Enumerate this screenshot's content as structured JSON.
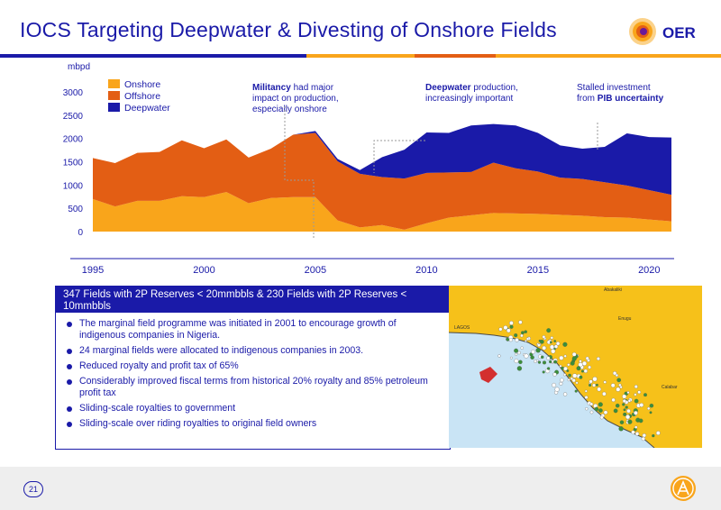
{
  "title": "IOCS Targeting Deepwater & Divesting of Onshore Fields",
  "logo": {
    "text": "OER"
  },
  "colors": {
    "onshore": "#F9A51B",
    "offshore": "#E35E14",
    "deepwater": "#1A1AA8",
    "title": "#1A1AA8",
    "map_land": "#F6C11A",
    "map_sea": "#C9E4F5"
  },
  "chart_data": {
    "type": "area",
    "stacked": true,
    "ylabel": "mbpd",
    "x": [
      1995,
      1996,
      1997,
      1998,
      1999,
      2000,
      2001,
      2002,
      2003,
      2004,
      2005,
      2006,
      2007,
      2008,
      2009,
      2010,
      2011,
      2012,
      2013,
      2014,
      2015,
      2016,
      2017,
      2018,
      2019,
      2020,
      2021
    ],
    "series": [
      {
        "name": "Onshore",
        "values": [
          700,
          540,
          660,
          660,
          760,
          740,
          850,
          610,
          720,
          740,
          740,
          240,
          90,
          140,
          40,
          180,
          300,
          350,
          400,
          390,
          380,
          360,
          340,
          310,
          300,
          260,
          220
        ]
      },
      {
        "name": "Offshore",
        "values": [
          880,
          930,
          1030,
          1050,
          1200,
          1050,
          1130,
          980,
          1060,
          1340,
          1380,
          1270,
          1150,
          1030,
          1100,
          1080,
          970,
          930,
          1080,
          970,
          910,
          800,
          790,
          750,
          690,
          630,
          570
        ]
      },
      {
        "name": "Deepwater",
        "values": [
          0,
          0,
          0,
          0,
          0,
          0,
          0,
          0,
          0,
          0,
          40,
          50,
          80,
          430,
          620,
          870,
          850,
          1000,
          830,
          920,
          830,
          690,
          650,
          760,
          1120,
          1140,
          1230
        ]
      }
    ],
    "yticks": [
      0,
      500,
      1000,
      1500,
      2000,
      2500,
      3000
    ],
    "xticks": [
      1995,
      2000,
      2005,
      2010,
      2015,
      2020
    ],
    "ylim": [
      0,
      3100
    ],
    "legend": "top-left",
    "grid": false,
    "annotations": [
      {
        "id": "militancy",
        "year": 2005,
        "lines": [
          [
            "Militancy",
            " had major"
          ],
          [
            "impact on production,"
          ],
          [
            "especially onshore"
          ]
        ]
      },
      {
        "id": "deepwater",
        "year": 2010,
        "lines": [
          [
            "Deepwater",
            " production,"
          ],
          [
            "increasingly important"
          ]
        ]
      },
      {
        "id": "pib",
        "year": 2017,
        "lines": [
          [
            "Stalled investment"
          ],
          [
            "from ",
            "PIB uncertainty"
          ]
        ]
      }
    ]
  },
  "panel": {
    "header": "347 Fields with 2P Reserves < 20mmbbls & 230 Fields with 2P Reserves < 10mmbbls",
    "bullets": [
      "The marginal field programme was initiated in 2001 to encourage growth of indigenous companies in Nigeria.",
      "24 marginal fields were allocated to indigenous companies in 2003.",
      "Reduced royalty and profit tax of 65%",
      "Considerably improved fiscal terms from historical 20% royalty and 85% petroleum profit tax",
      "Sliding-scale royalties to government",
      "Sliding-scale over riding royalties to original field owners"
    ]
  },
  "map": {
    "labels": [
      "LAGOS",
      "Enugu",
      "Abakaliki",
      "Calabar"
    ]
  },
  "footer": {
    "page_number": "21"
  }
}
